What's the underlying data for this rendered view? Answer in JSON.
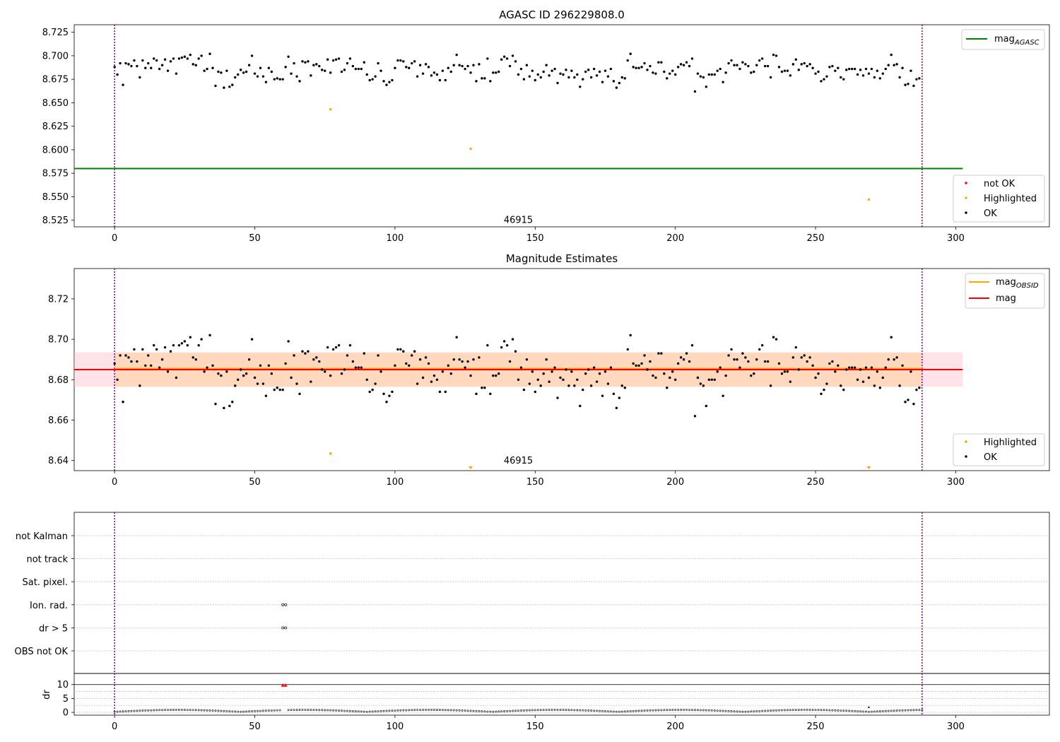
{
  "chart_data": [
    {
      "type": "scatter",
      "title": "AGASC ID 296229808.0",
      "xlim": [
        -14.4,
        333.4
      ],
      "ylim": [
        8.518,
        8.733
      ],
      "xticks": [
        0,
        50,
        100,
        150,
        200,
        250,
        300
      ],
      "yticks": [
        8.525,
        8.55,
        8.575,
        8.6,
        8.625,
        8.65,
        8.675,
        8.7,
        8.725
      ],
      "ytick_decimals": 3,
      "vlines": [
        0,
        288
      ],
      "obsid_label": {
        "text": "46915",
        "x": 144,
        "y": 8.522
      },
      "hline": {
        "name": "mag_AGASC",
        "label_main": "mag",
        "label_sub": "AGASC",
        "y": 8.58,
        "x0": -14.4,
        "x1": 302.5,
        "color": "#008000"
      },
      "series": [
        {
          "name": "not OK",
          "color": "#ff0000",
          "points": []
        },
        {
          "name": "Highlighted",
          "color": "#ffa500",
          "points": [
            [
              77,
              8.643
            ],
            [
              127,
              8.601
            ],
            [
              269,
              8.547
            ]
          ]
        },
        {
          "name": "OK",
          "color": "#000000",
          "points": "ok_mags"
        }
      ],
      "legend_top": [
        {
          "label_main": "mag",
          "label_sub": "AGASC",
          "color": "#008000",
          "kind": "line"
        }
      ],
      "legend_bottom": [
        {
          "label": "not OK",
          "color": "#ff0000",
          "kind": "dot"
        },
        {
          "label": "Highlighted",
          "color": "#ffa500",
          "kind": "dot"
        },
        {
          "label": "OK",
          "color": "#000000",
          "kind": "dot"
        }
      ],
      "grid": false
    },
    {
      "type": "scatter",
      "title": "Magnitude Estimates",
      "xlim": [
        -14.4,
        333.4
      ],
      "ylim": [
        8.635,
        8.735
      ],
      "xticks": [
        0,
        50,
        100,
        150,
        200,
        250,
        300
      ],
      "yticks": [
        8.64,
        8.66,
        8.68,
        8.7,
        8.72
      ],
      "ytick_decimals": 2,
      "vlines": [
        0,
        288
      ],
      "obsid_label": {
        "text": "46915",
        "x": 144,
        "y": 8.6385
      },
      "bands": [
        {
          "y0": 8.6765,
          "y1": 8.6935,
          "color": "#ffc0cb",
          "opacity": 0.45,
          "x0": -14.4,
          "x1": 302.5
        },
        {
          "y0": 8.6765,
          "y1": 8.6935,
          "color": "#ffa500",
          "opacity": 0.18,
          "x0": 0,
          "x1": 288
        }
      ],
      "lines": [
        {
          "label_main": "mag",
          "label_sub": "OBSID",
          "y": 8.6855,
          "color": "#ffa500",
          "x0": 0,
          "x1": 288
        },
        {
          "label_main": "mag",
          "label_sub": "",
          "y": 8.685,
          "color": "#ff0000",
          "x0": -14.4,
          "x1": 302.5
        }
      ],
      "series": [
        {
          "name": "Highlighted",
          "color": "#ffa500",
          "points": [
            [
              77,
              8.6435
            ]
          ]
        },
        {
          "name": "OK",
          "color": "#000000",
          "points": "ok_mags"
        }
      ],
      "clipped_markers": [
        {
          "x": 127,
          "color": "#ffa500"
        },
        {
          "x": 269,
          "color": "#ffa500"
        }
      ],
      "legend_top": [
        {
          "label_main": "mag",
          "label_sub": "OBSID",
          "color": "#ffa500",
          "kind": "line"
        },
        {
          "label_main": "mag",
          "label_sub": "",
          "color": "#ff0000",
          "kind": "line"
        }
      ],
      "legend_bottom": [
        {
          "label": "Highlighted",
          "color": "#ffa500",
          "kind": "dot"
        },
        {
          "label": "OK",
          "color": "#000000",
          "kind": "dot"
        }
      ],
      "grid": false
    },
    {
      "type": "scatter",
      "title": "",
      "xlim": [
        -14.4,
        333.4
      ],
      "categories": [
        "not Kalman",
        "not track",
        "Sat. pixel.",
        "Ion. rad.",
        "dr > 5",
        "OBS not OK"
      ],
      "vlines": [
        0,
        288
      ],
      "flags": [
        {
          "category": "Ion. rad.",
          "points": [
            60,
            61
          ]
        },
        {
          "category": "dr > 5",
          "points": [
            60,
            61
          ]
        }
      ],
      "grid": true
    },
    {
      "type": "scatter",
      "title": "",
      "ylabel": "dr",
      "xlim": [
        -14.4,
        333.4
      ],
      "ylim": [
        -1,
        14
      ],
      "xticks": [
        0,
        50,
        100,
        150,
        200,
        250,
        300
      ],
      "yticks": [
        0,
        5,
        10
      ],
      "vlines": [
        0,
        288
      ],
      "hline": {
        "y": 10
      },
      "markers_clipped_at_10": [
        60,
        61
      ],
      "outlier": {
        "x": 269,
        "y": 1.8
      },
      "dr_baseline_range": [
        0.2,
        0.9
      ],
      "grid": true
    }
  ],
  "ok_mags": [
    8.688,
    8.68,
    8.692,
    8.669,
    8.692,
    8.691,
    8.689,
    8.695,
    8.689,
    8.677,
    8.695,
    8.687,
    8.692,
    8.687,
    8.697,
    8.695,
    8.686,
    8.69,
    8.696,
    8.684,
    8.694,
    8.697,
    8.681,
    8.697,
    8.698,
    8.699,
    8.697,
    8.701,
    8.691,
    8.69,
    8.697,
    8.7,
    8.684,
    8.686,
    8.702,
    8.687,
    8.668,
    8.683,
    8.682,
    8.666,
    8.684,
    8.667,
    8.669,
    8.677,
    8.68,
    8.685,
    8.682,
    8.683,
    8.69,
    8.7,
    8.681,
    8.678,
    8.687,
    8.678,
    8.672,
    8.687,
    8.683,
    8.675,
    8.676,
    8.675,
    8.675,
    8.688,
    8.699,
    8.681,
    8.692,
    8.678,
    8.673,
    8.694,
    8.693,
    8.694,
    8.679,
    8.69,
    8.691,
    8.689,
    8.685,
    8.684,
    8.696,
    8.682,
    8.695,
    8.696,
    8.697,
    8.683,
    8.685,
    8.692,
    8.697,
    8.689,
    8.686,
    8.686,
    8.686,
    8.693,
    8.68,
    8.674,
    8.675,
    8.678,
    8.692,
    8.684,
    8.673,
    8.669,
    8.672,
    8.674,
    8.687,
    8.695,
    8.695,
    8.694,
    8.688,
    8.687,
    8.692,
    8.694,
    8.678,
    8.69,
    8.681,
    8.691,
    8.688,
    8.679,
    8.682,
    8.68,
    8.674,
    8.684,
    8.674,
    8.687,
    8.683,
    8.69,
    8.701,
    8.69,
    8.689,
    8.686,
    8.689,
    8.682,
    8.69,
    8.673,
    8.691,
    8.676,
    8.676,
    8.697,
    8.673,
    8.682,
    8.682,
    8.683,
    8.696,
    8.699,
    8.697,
    8.689,
    8.7,
    8.694,
    8.68,
    8.686,
    8.675,
    8.69,
    8.678,
    8.684,
    8.674,
    8.68,
    8.677,
    8.683,
    8.69,
    8.679,
    8.684,
    8.686,
    8.671,
    8.681,
    8.68,
    8.685,
    8.677,
    8.684,
    8.677,
    8.68,
    8.667,
    8.675,
    8.683,
    8.685,
    8.677,
    8.686,
    8.679,
    8.683,
    8.672,
    8.684,
    8.678,
    8.686,
    8.673,
    8.666,
    8.671,
    8.677,
    8.676,
    8.695,
    8.702,
    8.688,
    8.687,
    8.687,
    8.688,
    8.692,
    8.685,
    8.689,
    8.682,
    8.681,
    8.693,
    8.693,
    8.683,
    8.676,
    8.681,
    8.684,
    8.68,
    8.688,
    8.691,
    8.69,
    8.693,
    8.689,
    8.697,
    8.662,
    8.681,
    8.678,
    8.677,
    8.667,
    8.68,
    8.68,
    8.68,
    8.684,
    8.686,
    8.672,
    8.682,
    8.692,
    8.695,
    8.69,
    8.69,
    8.686,
    8.693,
    8.691,
    8.689,
    8.682,
    8.683,
    8.69,
    8.695,
    8.697,
    8.689,
    8.689,
    8.677,
    8.701,
    8.7,
    8.688,
    8.683,
    8.684,
    8.684,
    8.679,
    8.691,
    8.696,
    8.685,
    8.691,
    8.692,
    8.689,
    8.691,
    8.687,
    8.681,
    8.683,
    8.673,
    8.675,
    8.678,
    8.688,
    8.689,
    8.684,
    8.687,
    8.677,
    8.675,
    8.685,
    8.686,
    8.686,
    8.686,
    8.68,
    8.685,
    8.679,
    8.686,
    8.681,
    8.686,
    8.677,
    8.684,
    8.676,
    8.681,
    8.686,
    8.69,
    8.701,
    8.69,
    8.691,
    8.677,
    8.687,
    8.669,
    8.67,
    8.684,
    8.668,
    8.675,
    8.676
  ]
}
